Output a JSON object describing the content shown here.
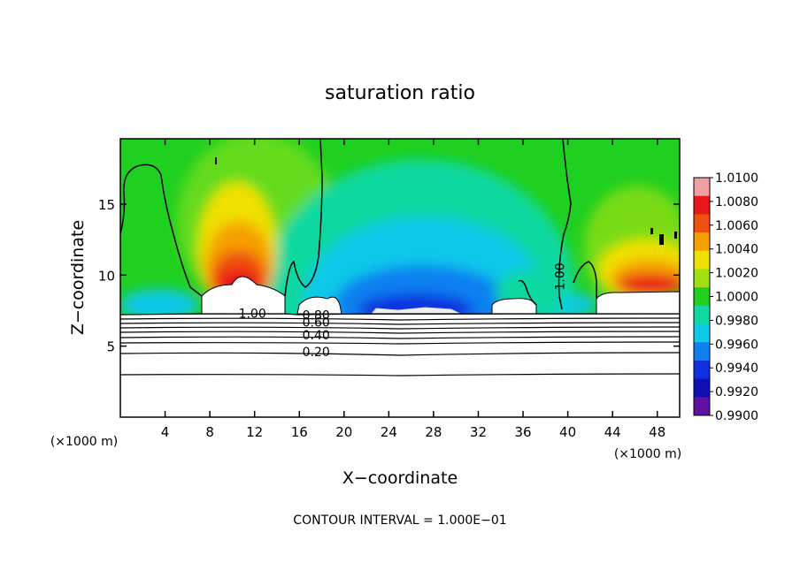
{
  "chart_data": {
    "type": "heatmap",
    "title": "saturation ratio",
    "xlabel": "X−coordinate",
    "ylabel": "Z−coordinate",
    "x_unit_left": "(×1000 m)",
    "x_unit_right": "(×1000 m)",
    "footer": "CONTOUR INTERVAL = 1.000E−01",
    "xlim": [
      0,
      50
    ],
    "ylim": [
      0,
      19.6
    ],
    "x_ticks": [
      4,
      8,
      12,
      16,
      20,
      24,
      28,
      32,
      36,
      40,
      44,
      48
    ],
    "x_tick_labels": [
      "4",
      "8",
      "12",
      "16",
      "20",
      "24",
      "28",
      "32",
      "36",
      "40",
      "44",
      "48"
    ],
    "y_ticks": [
      5,
      10,
      15
    ],
    "y_tick_labels": [
      "5",
      "10",
      "15"
    ],
    "colorbar": {
      "min": 0.99,
      "max": 1.01,
      "labels": [
        "1.0100",
        "1.0080",
        "1.0060",
        "1.0040",
        "1.0020",
        "1.0000",
        "0.9980",
        "0.9960",
        "0.9940",
        "0.9920",
        "0.9900"
      ],
      "colors": [
        "#f0a0a0",
        "#e81818",
        "#f05010",
        "#f5a000",
        "#f0e000",
        "#a0e010",
        "#20d020",
        "#10d8a0",
        "#10c8e8",
        "#1080f0",
        "#1030e0",
        "#1010b0",
        "#6010a0"
      ]
    },
    "contour_labels": [
      {
        "text": "1.00",
        "x": 11.8,
        "z": 7.3
      },
      {
        "text": "0.80",
        "x": 17.5,
        "z": 7.2
      },
      {
        "text": "0.60",
        "x": 17.5,
        "z": 6.7
      },
      {
        "text": "0.40",
        "x": 17.5,
        "z": 5.8
      },
      {
        "text": "0.20",
        "x": 17.5,
        "z": 4.6
      },
      {
        "text": "1.00",
        "x": 39.3,
        "z": 9.9
      }
    ],
    "contour_levels_below_cloud_base": [
      0.2,
      0.3,
      0.4,
      0.5,
      0.6,
      0.7,
      0.8,
      0.9,
      1.0
    ],
    "features": {
      "supersaturated_plume_center_x": [
        10.5,
        46.5
      ],
      "subsaturated_region_center_x": [
        27
      ],
      "cloud_base_z": 7.5
    }
  }
}
